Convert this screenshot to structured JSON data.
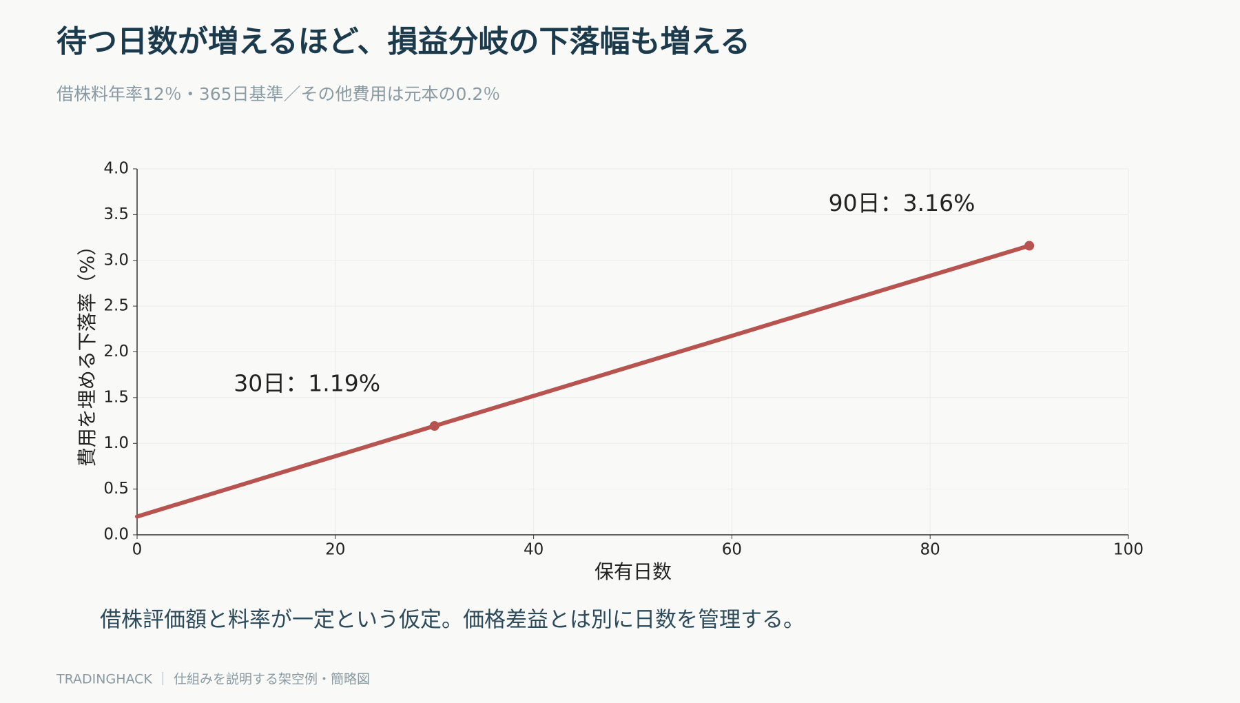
{
  "chart_data": {
    "type": "line",
    "title": "待つ日数が増えるほど、損益分岐の下落幅も増える",
    "subtitle": "借株料年率12％・365日基準／その他費用は元本の0.2％",
    "x_label": "保有日数",
    "y_label": "費用を埋める下落率（%）",
    "x": [
      0,
      30,
      90
    ],
    "series": [
      {
        "color": "#b85450",
        "values": [
          0.2,
          1.19,
          3.16
        ]
      }
    ],
    "annotations": [
      {
        "x": 30,
        "text": "30日：1.19%"
      },
      {
        "x": 90,
        "text": "90日：3.16%"
      }
    ],
    "xlim": [
      0,
      100
    ],
    "xticks": [
      0,
      20,
      40,
      60,
      80,
      100
    ],
    "ylim": [
      0,
      4
    ],
    "yticks": [
      {
        "value": 0,
        "label": "0.0"
      },
      0.5,
      {
        "value": 1,
        "label": "1.0"
      },
      1.5,
      {
        "value": 2,
        "label": "2.0"
      },
      2.5,
      {
        "value": 3,
        "label": "3.0"
      },
      3.5,
      {
        "value": 4,
        "label": "4.0"
      }
    ],
    "grid": true,
    "note": "借株評価額と料率が一定という仮定。価格差益とは別に日数を管理する。",
    "footer": "TRADINGHACK ｜ 仕組みを説明する架空例・簡略図"
  }
}
